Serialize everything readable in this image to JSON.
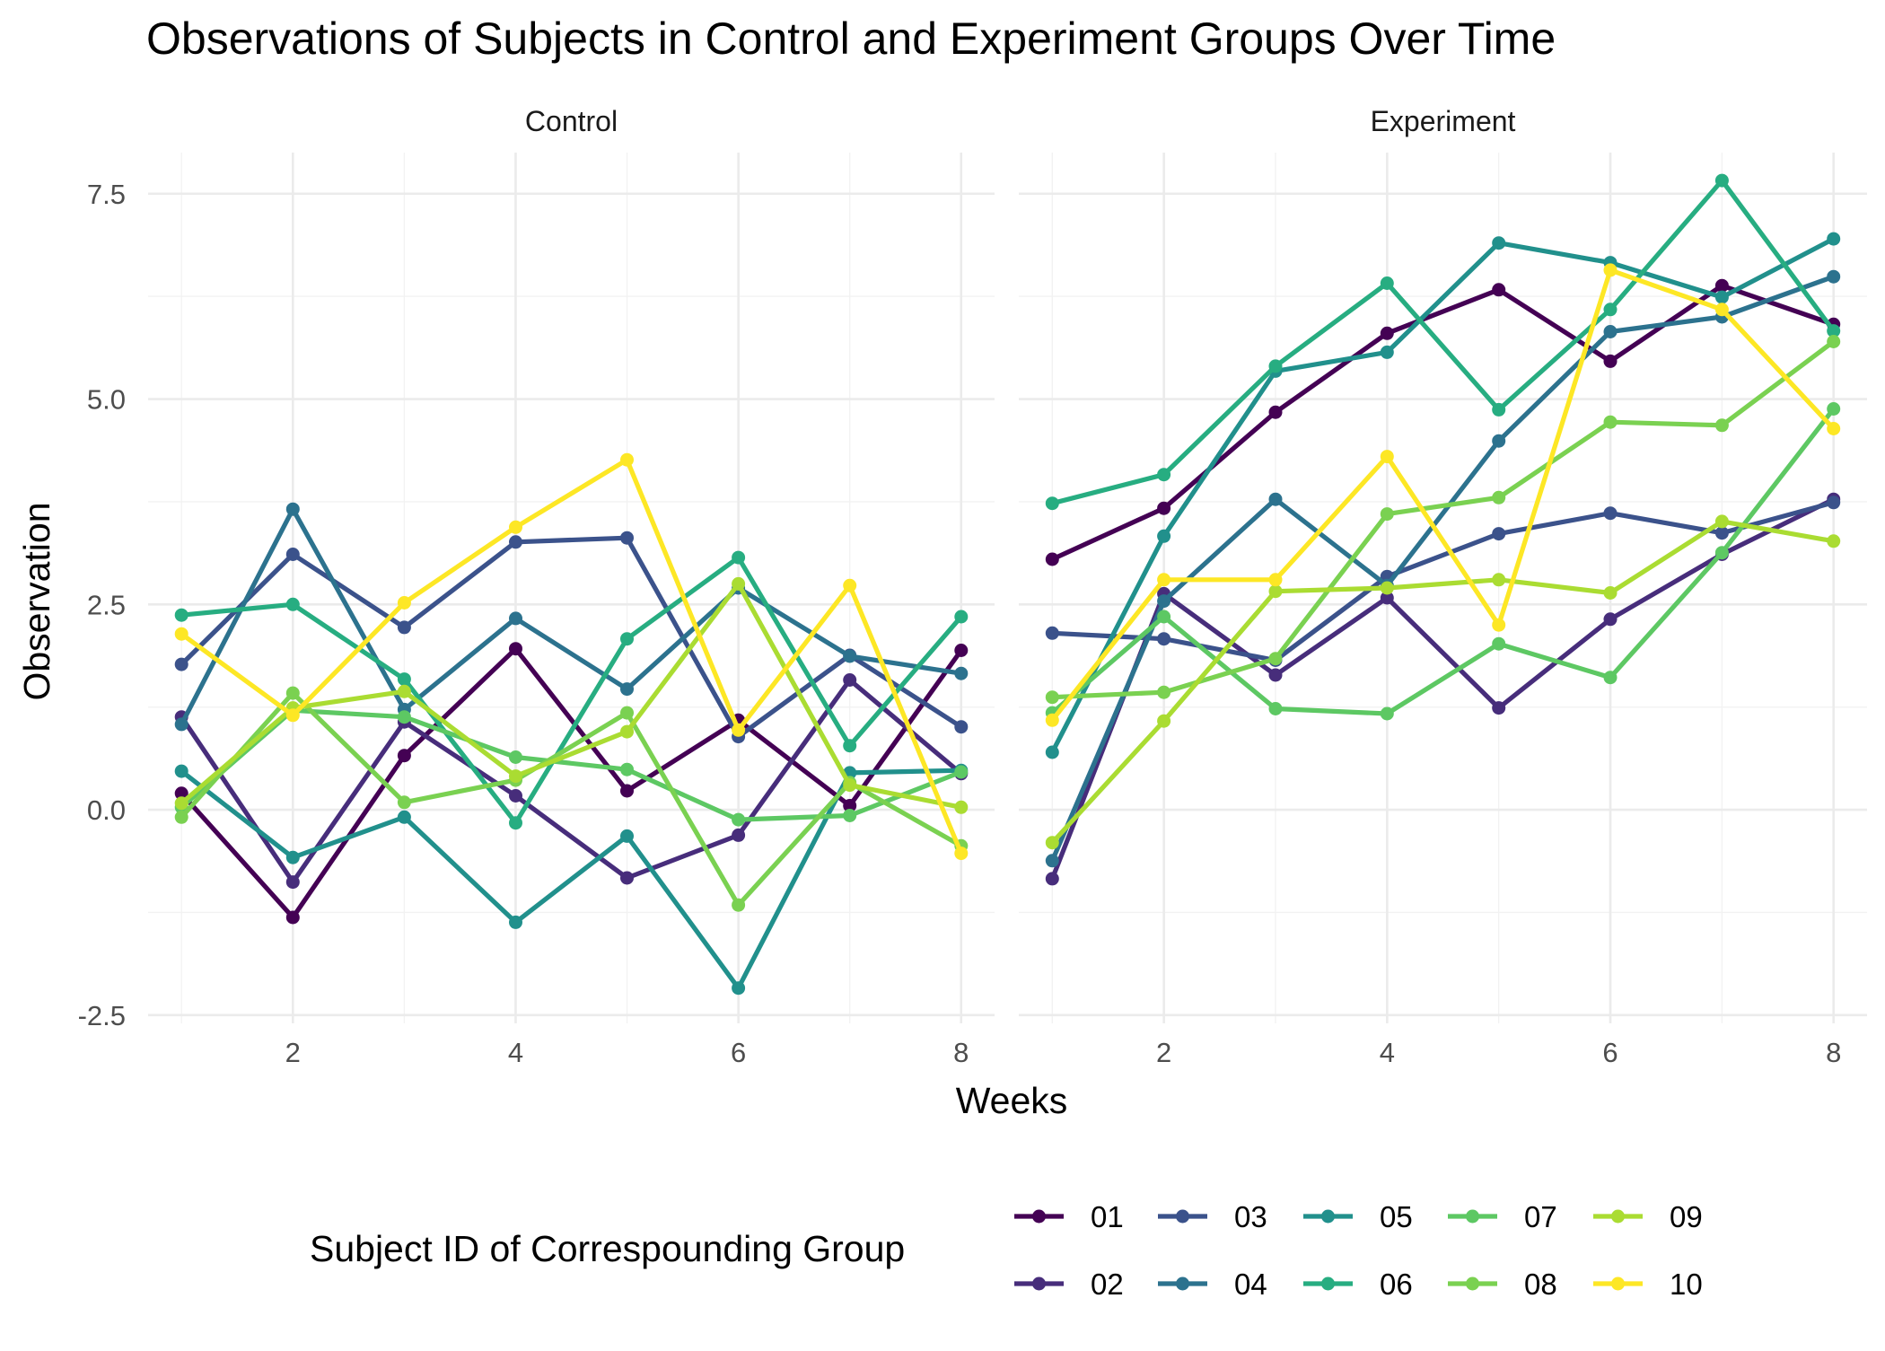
{
  "chart_data": {
    "type": "line",
    "title": "Observations of Subjects in Control and Experiment Groups Over Time",
    "xlabel": "Weeks",
    "ylabel": "Observation",
    "xlim": [
      0.7,
      8.3
    ],
    "ylim": [
      -2.6,
      8.0
    ],
    "x_ticks": [
      2,
      4,
      6,
      8
    ],
    "y_ticks": [
      -2.5,
      0.0,
      2.5,
      5.0,
      7.5
    ],
    "y_tick_labels": [
      "-2.5",
      "0.0",
      "2.5",
      "5.0",
      "7.5"
    ],
    "grid": true,
    "legend": {
      "title": "Subject ID of Correspounding Group",
      "position": "bottom",
      "entries": [
        "01",
        "02",
        "03",
        "04",
        "05",
        "06",
        "07",
        "08",
        "09",
        "10"
      ]
    },
    "colors": {
      "01": "#440154",
      "02": "#472D7B",
      "03": "#3B528B",
      "04": "#2C728E",
      "05": "#21908C",
      "06": "#27AD81",
      "07": "#5DC863",
      "08": "#7AD151",
      "09": "#AADC32",
      "10": "#FDE725"
    },
    "x": [
      1,
      2,
      3,
      4,
      5,
      6,
      7,
      8
    ],
    "panels": [
      {
        "name": "Control",
        "series": [
          {
            "name": "01",
            "values": [
              0.2,
              -1.31,
              0.66,
              1.96,
              0.23,
              1.09,
              0.05,
              1.94
            ]
          },
          {
            "name": "02",
            "values": [
              1.13,
              -0.88,
              1.07,
              0.17,
              -0.83,
              -0.31,
              1.58,
              0.44
            ]
          },
          {
            "name": "03",
            "values": [
              1.77,
              3.11,
              2.22,
              3.26,
              3.31,
              0.89,
              1.88,
              1.01
            ]
          },
          {
            "name": "04",
            "values": [
              1.04,
              3.66,
              1.22,
              2.33,
              1.47,
              2.7,
              1.87,
              1.66
            ]
          },
          {
            "name": "05",
            "values": [
              0.47,
              -0.58,
              -0.09,
              -1.37,
              -0.32,
              -2.17,
              0.45,
              0.48
            ]
          },
          {
            "name": "06",
            "values": [
              2.37,
              2.5,
              1.59,
              -0.16,
              2.08,
              3.07,
              0.78,
              2.35
            ]
          },
          {
            "name": "07",
            "values": [
              0.03,
              1.21,
              1.13,
              0.64,
              0.49,
              -0.12,
              -0.07,
              0.46
            ]
          },
          {
            "name": "08",
            "values": [
              -0.09,
              1.42,
              0.09,
              0.36,
              1.18,
              -1.16,
              0.33,
              -0.44
            ]
          },
          {
            "name": "09",
            "values": [
              0.08,
              1.24,
              1.44,
              0.41,
              0.95,
              2.75,
              0.3,
              0.03
            ]
          },
          {
            "name": "10",
            "values": [
              2.14,
              1.15,
              2.52,
              3.44,
              4.26,
              0.97,
              2.73,
              -0.53
            ]
          }
        ]
      },
      {
        "name": "Experiment",
        "series": [
          {
            "name": "01",
            "values": [
              3.05,
              3.67,
              4.84,
              5.8,
              6.33,
              5.46,
              6.38,
              5.91
            ]
          },
          {
            "name": "02",
            "values": [
              -0.84,
              2.63,
              1.64,
              2.58,
              1.24,
              2.32,
              3.11,
              3.78
            ]
          },
          {
            "name": "03",
            "values": [
              2.15,
              2.08,
              1.82,
              2.84,
              3.36,
              3.61,
              3.37,
              3.74
            ]
          },
          {
            "name": "04",
            "values": [
              -0.62,
              2.54,
              3.78,
              2.73,
              4.49,
              5.82,
              6.0,
              6.49
            ]
          },
          {
            "name": "05",
            "values": [
              0.7,
              3.33,
              5.34,
              5.57,
              6.9,
              6.66,
              6.24,
              6.95
            ]
          },
          {
            "name": "06",
            "values": [
              3.73,
              4.08,
              5.4,
              6.41,
              4.87,
              6.09,
              7.66,
              5.83
            ]
          },
          {
            "name": "07",
            "values": [
              1.18,
              2.35,
              1.23,
              1.17,
              2.02,
              1.61,
              3.13,
              4.88
            ]
          },
          {
            "name": "08",
            "values": [
              1.37,
              1.43,
              1.84,
              3.6,
              3.8,
              4.72,
              4.68,
              5.7
            ]
          },
          {
            "name": "09",
            "values": [
              -0.4,
              1.08,
              2.66,
              2.7,
              2.8,
              2.64,
              3.51,
              3.27
            ]
          },
          {
            "name": "10",
            "values": [
              1.09,
              2.8,
              2.8,
              4.3,
              2.25,
              6.57,
              6.09,
              4.64
            ]
          }
        ]
      }
    ]
  }
}
